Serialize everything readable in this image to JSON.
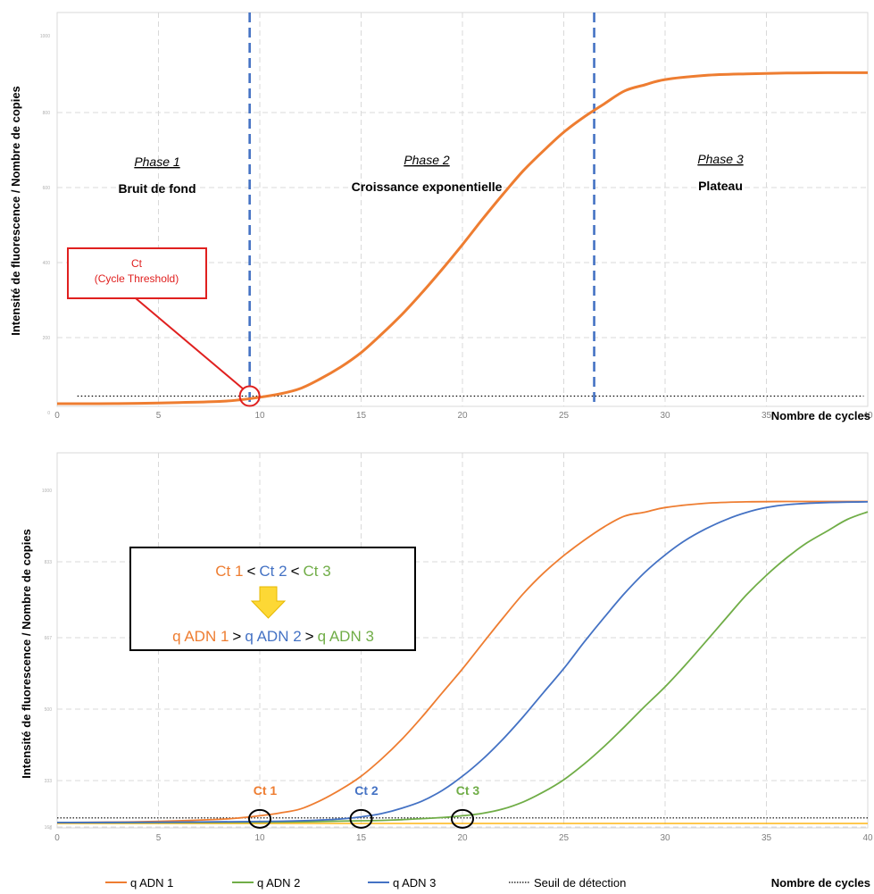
{
  "colors": {
    "adn1": "#ee7d31",
    "adn2": "#70ad47",
    "adn3": "#4472c4",
    "phase_line": "#4472c4",
    "threshold": "#000000",
    "ct_annot": "#e0201f",
    "arrow": "#fdd835"
  },
  "chart_data": [
    {
      "type": "line",
      "xlabel": "Nombre de cycles",
      "ylabel": "Intensité de fluorescence / Nombre de copies",
      "xlim": [
        0,
        40
      ],
      "x_ticks": [
        "0",
        "5",
        "10",
        "15",
        "20",
        "25",
        "30",
        "35",
        "40"
      ],
      "y_ticks": [
        "1000",
        "800",
        "600",
        "400",
        "200",
        "0"
      ],
      "ylim": [
        0,
        1000
      ],
      "grid": true,
      "phases": [
        {
          "title": "Phase 1",
          "subtitle": "Bruit de fond"
        },
        {
          "title": "Phase 2",
          "subtitle": "Croissance exponentielle"
        },
        {
          "title": "Phase 3",
          "subtitle": "Plateau"
        }
      ],
      "phase_boundaries": [
        9.5,
        26.5
      ],
      "threshold": 20,
      "ct_annotation": {
        "line1": "Ct",
        "line2": "(Cycle Threshold)",
        "x": 9.5
      },
      "series": [
        {
          "x": [
            0,
            2,
            4,
            6,
            8,
            9,
            10,
            11,
            12,
            13,
            14,
            15,
            16,
            17,
            18,
            19,
            20,
            21,
            22,
            23,
            24,
            25,
            26,
            27,
            28,
            29,
            30,
            32,
            34,
            36,
            38,
            40
          ],
          "values": [
            0,
            0,
            1,
            3,
            6,
            10,
            17,
            26,
            40,
            66,
            97,
            135,
            183,
            235,
            293,
            355,
            420,
            488,
            553,
            615,
            668,
            717,
            757,
            792,
            826,
            842,
            856,
            867,
            871,
            873,
            874,
            874
          ]
        }
      ]
    },
    {
      "type": "line",
      "xlabel": "Nombre de cycles",
      "ylabel": "Intensité de fluorescence / Nombre de copies",
      "xlim": [
        0,
        40
      ],
      "x_ticks": [
        "0",
        "5",
        "10",
        "15",
        "20",
        "25",
        "30",
        "35",
        "40"
      ],
      "y_ticks": [
        "1000",
        "833",
        "667",
        "500",
        "333",
        "167",
        "0"
      ],
      "ylim": [
        0,
        1000
      ],
      "grid": true,
      "threshold": 13,
      "comparison": {
        "ct1": "Ct 1",
        "ct2": "Ct 2",
        "ct3": "Ct 3",
        "lt": "<",
        "q1": "q ADN 1",
        "q2": "q ADN 2",
        "q3": "q ADN 3",
        "gt": ">"
      },
      "ct_markers": [
        {
          "label": "Ct 1",
          "x": 10
        },
        {
          "label": "Ct 2",
          "x": 15
        },
        {
          "label": "Ct 3",
          "x": 20
        }
      ],
      "series": [
        {
          "name": "q ADN 1",
          "x": [
            0,
            2,
            4,
            6,
            8,
            9,
            10,
            11,
            12,
            13,
            14,
            15,
            16,
            17,
            18,
            19,
            20,
            21,
            22,
            23,
            24,
            25,
            26,
            27,
            28,
            29,
            30,
            32,
            34,
            36,
            38,
            40
          ],
          "values": [
            0,
            1,
            2,
            5,
            9,
            13,
            19,
            27,
            38,
            62,
            93,
            130,
            178,
            233,
            296,
            364,
            431,
            503,
            574,
            642,
            700,
            749,
            792,
            830,
            860,
            871,
            884,
            896,
            900,
            901,
            901,
            901
          ]
        },
        {
          "name": "q ADN 2",
          "x": [
            0,
            5,
            10,
            12,
            14,
            15,
            16,
            17,
            18,
            19,
            20,
            21,
            22,
            23,
            24,
            25,
            26,
            27,
            28,
            29,
            30,
            31,
            32,
            33,
            34,
            35,
            36,
            37,
            38,
            39,
            40
          ],
          "values": [
            0,
            0,
            1,
            2,
            4,
            5,
            6,
            8,
            11,
            14,
            19,
            26,
            38,
            58,
            86,
            120,
            164,
            214,
            269,
            326,
            381,
            442,
            507,
            573,
            638,
            694,
            743,
            785,
            818,
            851,
            872
          ]
        },
        {
          "name": "q ADN 3",
          "x": [
            0,
            5,
            10,
            12,
            13,
            14,
            15,
            16,
            17,
            18,
            19,
            20,
            21,
            22,
            23,
            24,
            25,
            26,
            27,
            28,
            29,
            30,
            31,
            32,
            33,
            34,
            35,
            36,
            38,
            40
          ],
          "values": [
            0,
            1,
            3,
            5,
            7,
            10,
            16,
            25,
            40,
            60,
            90,
            130,
            178,
            234,
            297,
            365,
            432,
            506,
            576,
            643,
            702,
            751,
            792,
            824,
            850,
            870,
            884,
            892,
            898,
            900
          ]
        }
      ]
    }
  ],
  "legend": {
    "items": [
      {
        "label": "q ADN 1",
        "color": "#ee7d31",
        "style": "solid"
      },
      {
        "label": "q ADN 2",
        "color": "#70ad47",
        "style": "solid"
      },
      {
        "label": "q ADN 3",
        "color": "#4472c4",
        "style": "solid"
      },
      {
        "label": "Seuil de détection",
        "color": "#000000",
        "style": "dotted"
      }
    ]
  }
}
